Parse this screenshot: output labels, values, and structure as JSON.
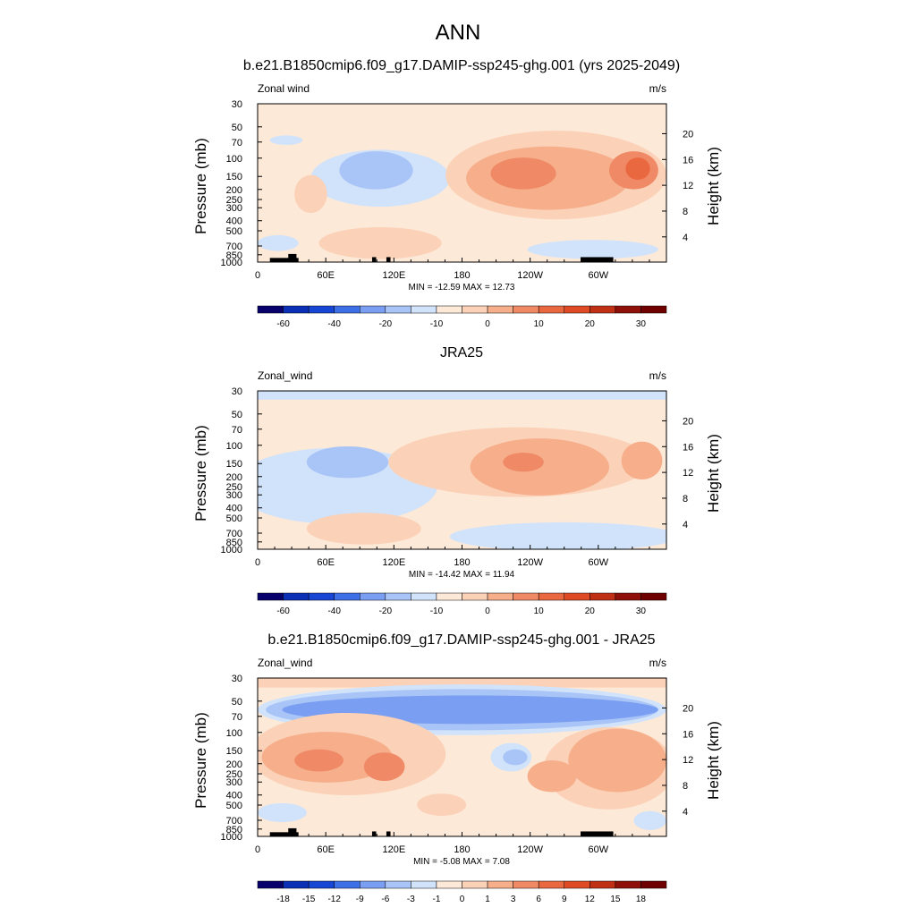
{
  "page": {
    "title": "ANN"
  },
  "colors": {
    "background": "#ffffff",
    "text": "#000000",
    "land_mask": "#000000"
  },
  "chart_data": [
    {
      "type": "heatmap",
      "title": "b.e21.B1850cmip6.f09_g17.DAMIP-ssp245-ghg.001 (yrs 2025-2049)",
      "left_label": "Zonal wind",
      "right_label": "m/s",
      "ylabel": "Pressure (mb)",
      "ylabel_right": "Height (km)",
      "x_ticks": [
        "0",
        "60E",
        "120E",
        "180",
        "120W",
        "60W"
      ],
      "y_ticks": [
        "30",
        "50",
        "70",
        "100",
        "150",
        "200",
        "250",
        "300",
        "400",
        "500",
        "700",
        "850",
        "1000"
      ],
      "y_ticks_right": [
        "20",
        "16",
        "12",
        "8",
        "4"
      ],
      "stats": "MIN = -12.59  MAX =  12.73",
      "min": -12.59,
      "max": 12.73,
      "colorbar": {
        "labels": [
          "-60",
          "-40",
          "-20",
          "-10",
          "0",
          "10",
          "20",
          "30"
        ],
        "colors": [
          "#08006b",
          "#0b2fb5",
          "#1846d4",
          "#3d6fe6",
          "#7a9ef1",
          "#a9c4f6",
          "#d1e3fa",
          "#fde9d8",
          "#fbd1b7",
          "#f6ae8b",
          "#f08a66",
          "#ea6840",
          "#de4a24",
          "#c03015",
          "#8f1008",
          "#6e0000"
        ]
      }
    },
    {
      "type": "heatmap",
      "title": "JRA25",
      "left_label": "Zonal_wind",
      "right_label": "m/s",
      "ylabel": "Pressure (mb)",
      "ylabel_right": "Height (km)",
      "x_ticks": [
        "0",
        "60E",
        "120E",
        "180",
        "120W",
        "60W"
      ],
      "y_ticks": [
        "30",
        "50",
        "70",
        "100",
        "150",
        "200",
        "250",
        "300",
        "400",
        "500",
        "700",
        "850",
        "1000"
      ],
      "y_ticks_right": [
        "20",
        "16",
        "12",
        "8",
        "4"
      ],
      "stats": "MIN = -14.42  MAX =  11.94",
      "min": -14.42,
      "max": 11.94,
      "colorbar": {
        "labels": [
          "-60",
          "-40",
          "-20",
          "-10",
          "0",
          "10",
          "20",
          "30"
        ],
        "colors": [
          "#08006b",
          "#0b2fb5",
          "#1846d4",
          "#3d6fe6",
          "#7a9ef1",
          "#a9c4f6",
          "#d1e3fa",
          "#fde9d8",
          "#fbd1b7",
          "#f6ae8b",
          "#f08a66",
          "#ea6840",
          "#de4a24",
          "#c03015",
          "#8f1008",
          "#6e0000"
        ]
      }
    },
    {
      "type": "heatmap",
      "title": "b.e21.B1850cmip6.f09_g17.DAMIP-ssp245-ghg.001 - JRA25",
      "left_label": "Zonal_wind",
      "right_label": "m/s",
      "ylabel": "Pressure (mb)",
      "ylabel_right": "Height (km)",
      "x_ticks": [
        "0",
        "60E",
        "120E",
        "180",
        "120W",
        "60W"
      ],
      "y_ticks": [
        "30",
        "50",
        "70",
        "100",
        "150",
        "200",
        "250",
        "300",
        "400",
        "500",
        "700",
        "850",
        "1000"
      ],
      "y_ticks_right": [
        "20",
        "16",
        "12",
        "8",
        "4"
      ],
      "stats": "MIN = -5.08  MAX =  7.08",
      "min": -5.08,
      "max": 7.08,
      "colorbar": {
        "labels": [
          "-18",
          "-15",
          "-12",
          "-9",
          "-6",
          "-3",
          "-1",
          "0",
          "1",
          "3",
          "6",
          "9",
          "12",
          "15",
          "18"
        ],
        "colors": [
          "#08006b",
          "#0b2fb5",
          "#1846d4",
          "#3d6fe6",
          "#7a9ef1",
          "#a9c4f6",
          "#d1e3fa",
          "#fde9d8",
          "#fbd1b7",
          "#f6ae8b",
          "#f08a66",
          "#ea6840",
          "#de4a24",
          "#c03015",
          "#8f1008",
          "#6e0000"
        ]
      }
    }
  ]
}
